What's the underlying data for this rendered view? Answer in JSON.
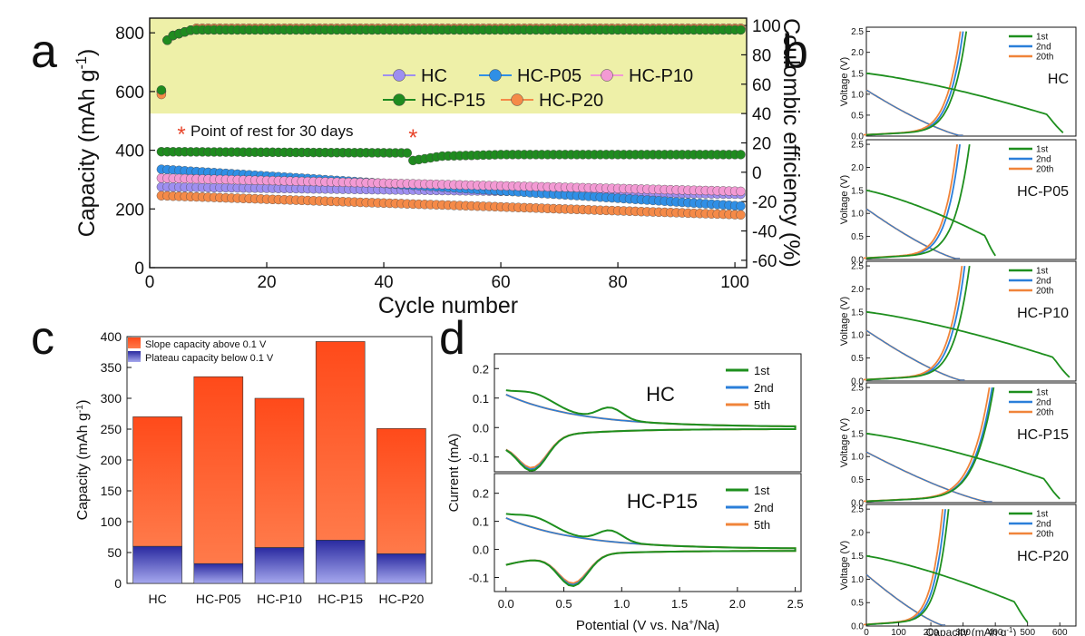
{
  "panel_labels": {
    "a": "a",
    "b": "b",
    "c": "c",
    "d": "d"
  },
  "colors": {
    "HC": "#9e8ff0",
    "HC-P05": "#2f8fe6",
    "HC-P10": "#f39ad4",
    "HC-P15": "#1f8b1f",
    "HC-P20": "#f58a48",
    "rest": "#e8462c",
    "green": "#1e8f1e",
    "blue": "#2b7fd9",
    "orange": "#f0843a",
    "slope": "#ff5a2a",
    "plateau": "#4a4ab8",
    "shade": "#eef0a8"
  },
  "chart_data": [
    {
      "id": "a",
      "type": "scatter",
      "xlabel": "Cycle number",
      "ylabel": "Capacity (mAh g",
      "ylabel_sup": "-1",
      "ylabel_tail": ")",
      "y2label": "Coulombic efficiency (%)",
      "xlim": [
        0,
        102
      ],
      "ylim": [
        0,
        850
      ],
      "y2lim": [
        -65,
        105
      ],
      "xticks": [
        0,
        20,
        40,
        60,
        80,
        100
      ],
      "yticks": [
        0,
        200,
        400,
        600,
        800
      ],
      "y2ticks": [
        -60,
        -40,
        -20,
        0,
        20,
        40,
        60,
        80,
        100
      ],
      "annotation": "Point of rest for 30 days",
      "annotation_mark": "*",
      "rest_cycle": 45,
      "legend": [
        "HC",
        "HC-P05",
        "HC-P10",
        "HC-P15",
        "HC-P20"
      ],
      "capacity": [
        {
          "name": "HC",
          "start": 275,
          "end": 250
        },
        {
          "name": "HC-P05",
          "start": 335,
          "end": 210
        },
        {
          "name": "HC-P10",
          "start": 305,
          "end": 260
        },
        {
          "name": "HC-P15",
          "start": 395,
          "end": 385,
          "rest_dip": 365
        },
        {
          "name": "HC-P20",
          "start": 245,
          "end": 180
        }
      ],
      "ce": [
        {
          "name": "HC",
          "first": 55,
          "plateau": 98
        },
        {
          "name": "HC-P05",
          "first": 55,
          "plateau": 97
        },
        {
          "name": "HC-P10",
          "first": 55,
          "plateau": 98
        },
        {
          "name": "HC-P15",
          "first": 56,
          "plateau": 97
        },
        {
          "name": "HC-P20",
          "first": 53,
          "plateau": 98
        }
      ]
    },
    {
      "id": "b",
      "type": "line",
      "xlabel": "Capacity (mAh g",
      "xlabel_sup": "-1",
      "xlabel_tail": ")",
      "ylabel": "Voltage (V)",
      "xlim": [
        0,
        650
      ],
      "ylim": [
        0,
        2.6
      ],
      "xticks": [
        0,
        100,
        200,
        300,
        400,
        500,
        600
      ],
      "yticks": [
        "0.0",
        "0.5",
        "1.0",
        "1.5",
        "2.0",
        "2.5"
      ],
      "legend": [
        "1st",
        "2nd",
        "20th"
      ],
      "panels": [
        {
          "name": "HC",
          "first_dis": 610,
          "first_ch": 310,
          "rev": 300
        },
        {
          "name": "HC-P05",
          "first_dis": 400,
          "first_ch": 320,
          "rev": 290
        },
        {
          "name": "HC-P10",
          "first_dis": 630,
          "first_ch": 320,
          "rev": 305
        },
        {
          "name": "HC-P15",
          "first_dis": 600,
          "first_ch": 395,
          "rev": 390
        },
        {
          "name": "HC-P20",
          "first_dis": 500,
          "first_ch": 255,
          "rev": 245
        }
      ]
    },
    {
      "id": "c",
      "type": "bar",
      "ylabel": "Capacity (mAh g",
      "ylabel_sup": "-1",
      "ylabel_tail": ")",
      "ylim": [
        0,
        400
      ],
      "yticks": [
        0,
        50,
        100,
        150,
        200,
        250,
        300,
        350,
        400
      ],
      "categories": [
        "HC",
        "HC-P05",
        "HC-P10",
        "HC-P15",
        "HC-P20"
      ],
      "series": [
        {
          "name": "Plateau capacity below 0.1 V",
          "values": [
            60,
            32,
            58,
            70,
            48
          ]
        },
        {
          "name": "Slope capacity above 0.1 V",
          "values": [
            210,
            303,
            242,
            322,
            203
          ]
        }
      ]
    },
    {
      "id": "d",
      "type": "line",
      "xlabel": "Potential (V vs. Na",
      "xlabel_sup": "+",
      "xlabel_tail": "/Na)",
      "ylabel": "Current (mA)",
      "xlim": [
        -0.1,
        2.55
      ],
      "xticks": [
        "0.0",
        "0.5",
        "1.0",
        "1.5",
        "2.0",
        "2.5"
      ],
      "legend": [
        "1st",
        "2nd",
        "5th"
      ],
      "panels": [
        {
          "name": "HC",
          "ylim": [
            -0.15,
            0.25
          ],
          "yticks": [
            "-0.1",
            "0.0",
            "0.1",
            "0.2"
          ]
        },
        {
          "name": "HC-P15",
          "ylim": [
            -0.15,
            0.27
          ],
          "yticks": [
            "-0.1",
            "0.0",
            "0.1",
            "0.2"
          ]
        }
      ]
    }
  ]
}
